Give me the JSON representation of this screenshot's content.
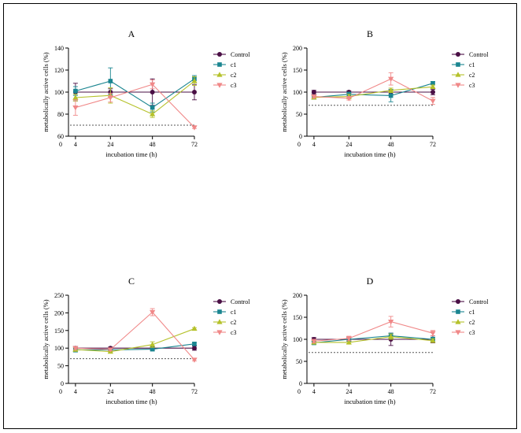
{
  "colors": {
    "Control": "#4a0f45",
    "c1": "#1a8590",
    "c2": "#b5c12a",
    "c3": "#f08888",
    "axis": "#000000",
    "threshold": "#555555"
  },
  "chart_data": [
    {
      "type": "line",
      "title": "A",
      "xlabel": "incubation time (h)",
      "ylabel": "metabolically active cells (%)",
      "x": [
        4,
        24,
        48,
        72
      ],
      "xticks": [
        0,
        4,
        24,
        48,
        72
      ],
      "xlim": [
        0,
        72
      ],
      "ylim": [
        60,
        140
      ],
      "yticks": [
        60,
        80,
        100,
        120,
        140
      ],
      "threshold": 70,
      "legend_position": "right",
      "series": [
        {
          "name": "Control",
          "marker": "circle",
          "values": [
            100,
            100,
            100,
            100
          ],
          "errors": [
            8,
            3,
            12,
            7
          ]
        },
        {
          "name": "c1",
          "marker": "square",
          "values": [
            101,
            110,
            86,
            112
          ],
          "errors": [
            4,
            12,
            4,
            3
          ]
        },
        {
          "name": "c2",
          "marker": "triangle-up",
          "values": [
            95,
            97,
            80,
            110
          ],
          "errors": [
            3,
            7,
            3,
            4
          ]
        },
        {
          "name": "c3",
          "marker": "triangle-down",
          "values": [
            86,
            95,
            107,
            68
          ],
          "errors": [
            7,
            4,
            4,
            1
          ]
        }
      ]
    },
    {
      "type": "line",
      "title": "B",
      "xlabel": "incubation time (h)",
      "ylabel": "metabolically active cells (%)",
      "x": [
        4,
        24,
        48,
        72
      ],
      "xticks": [
        0,
        4,
        24,
        48,
        72
      ],
      "xlim": [
        0,
        72
      ],
      "ylim": [
        0,
        200
      ],
      "yticks": [
        0,
        50,
        100,
        150,
        200
      ],
      "threshold": 70,
      "legend_position": "right",
      "series": [
        {
          "name": "Control",
          "marker": "circle",
          "values": [
            100,
            100,
            100,
            100
          ],
          "errors": [
            4,
            3,
            5,
            6
          ]
        },
        {
          "name": "c1",
          "marker": "square",
          "values": [
            88,
            95,
            92,
            120
          ],
          "errors": [
            4,
            5,
            14,
            4
          ]
        },
        {
          "name": "c2",
          "marker": "triangle-up",
          "values": [
            88,
            90,
            104,
            112
          ],
          "errors": [
            3,
            5,
            5,
            4
          ]
        },
        {
          "name": "c3",
          "marker": "triangle-down",
          "values": [
            90,
            86,
            130,
            80
          ],
          "errors": [
            3,
            4,
            14,
            8
          ]
        }
      ]
    },
    {
      "type": "line",
      "title": "C",
      "xlabel": "incubation time (h)",
      "ylabel": "metabolically active cells (%)",
      "x": [
        4,
        24,
        48,
        72
      ],
      "xticks": [
        0,
        4,
        24,
        48,
        72
      ],
      "xlim": [
        0,
        72
      ],
      "ylim": [
        0,
        250
      ],
      "yticks": [
        0,
        50,
        100,
        150,
        200,
        250
      ],
      "threshold": 70,
      "legend_position": "right",
      "series": [
        {
          "name": "Control",
          "marker": "circle",
          "values": [
            100,
            100,
            100,
            100
          ],
          "errors": [
            5,
            3,
            5,
            6
          ]
        },
        {
          "name": "c1",
          "marker": "square",
          "values": [
            95,
            95,
            97,
            112
          ],
          "errors": [
            6,
            3,
            5,
            4
          ]
        },
        {
          "name": "c2",
          "marker": "triangle-up",
          "values": [
            96,
            90,
            110,
            155
          ],
          "errors": [
            5,
            3,
            8,
            3
          ]
        },
        {
          "name": "c3",
          "marker": "triangle-down",
          "values": [
            100,
            96,
            202,
            67
          ],
          "errors": [
            4,
            3,
            10,
            3
          ]
        }
      ]
    },
    {
      "type": "line",
      "title": "D",
      "xlabel": "incubation time (h)",
      "ylabel": "metabolically active cells (%)",
      "x": [
        4,
        24,
        48,
        72
      ],
      "xticks": [
        0,
        4,
        24,
        48,
        72
      ],
      "xlim": [
        0,
        72
      ],
      "ylim": [
        0,
        200
      ],
      "yticks": [
        0,
        50,
        100,
        150,
        200
      ],
      "threshold": 70,
      "legend_position": "right",
      "series": [
        {
          "name": "Control",
          "marker": "circle",
          "values": [
            100,
            100,
            100,
            100
          ],
          "errors": [
            4,
            4,
            14,
            8
          ]
        },
        {
          "name": "c1",
          "marker": "square",
          "values": [
            92,
            100,
            108,
            100
          ],
          "errors": [
            4,
            4,
            6,
            5
          ]
        },
        {
          "name": "c2",
          "marker": "triangle-up",
          "values": [
            93,
            93,
            106,
            97
          ],
          "errors": [
            4,
            4,
            6,
            4
          ]
        },
        {
          "name": "c3",
          "marker": "triangle-down",
          "values": [
            96,
            102,
            140,
            114
          ],
          "errors": [
            4,
            5,
            12,
            6
          ]
        }
      ]
    }
  ]
}
